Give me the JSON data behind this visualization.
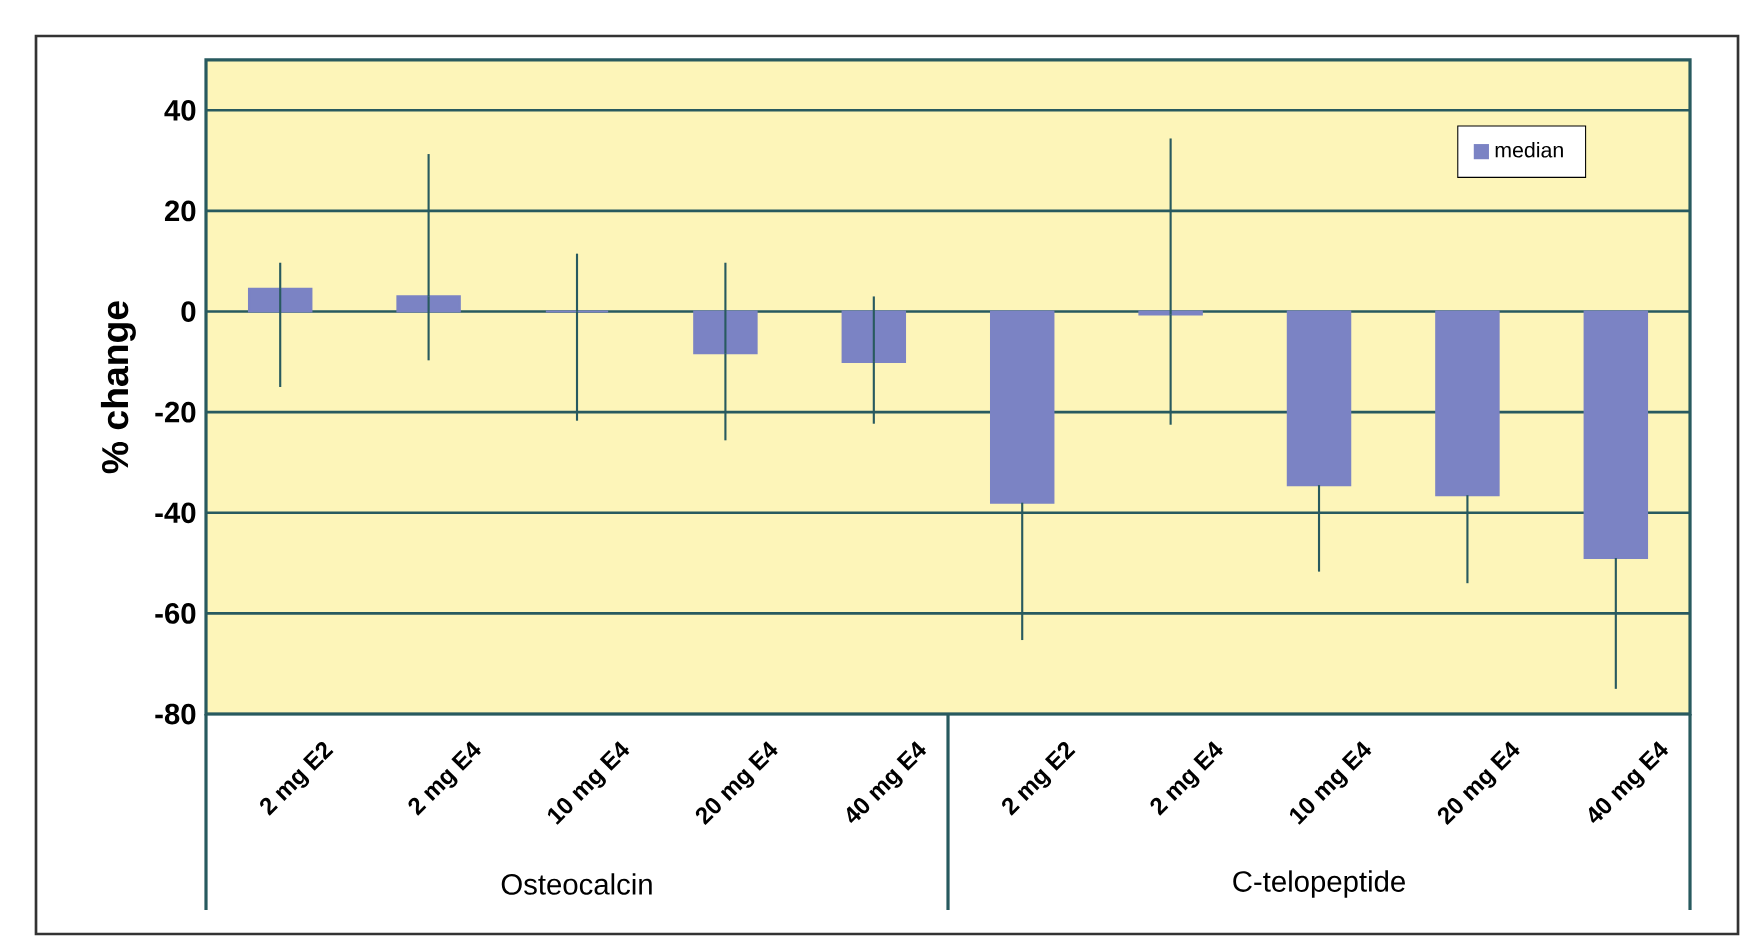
{
  "chart_data": {
    "type": "bar",
    "ylabel": "% change",
    "categories": [
      "2 mg E2",
      "2 mg E4",
      "10 mg E4",
      "20 mg E4",
      "40 mg E4",
      "2 mg E2",
      "2 mg E4",
      "10 mg E4",
      "20 mg E4",
      "40 mg E4"
    ],
    "series": [
      {
        "name": "median",
        "color": "#7b83c4",
        "values": [
          4.5,
          3,
          0,
          -8.3,
          -10,
          -38,
          -0.6,
          -34.5,
          -36.5,
          -49
        ],
        "errors": [
          [
            -15,
            9.7
          ],
          [
            -9.7,
            31.3
          ],
          [
            -21.7,
            11.5
          ],
          [
            -25.6,
            9.7
          ],
          [
            -22.3,
            3
          ],
          [
            -65.3,
            -38
          ],
          [
            -22.5,
            34.4
          ],
          [
            -51.7,
            -34.5
          ],
          [
            -54,
            -36.5
          ],
          [
            -75,
            -49
          ]
        ]
      }
    ],
    "annotations": [
      "Osteocalcin",
      "C-telopeptide"
    ],
    "ylim": [
      -80,
      50
    ],
    "yticks": [
      -80,
      -60,
      -40,
      -20,
      0,
      20,
      40
    ],
    "grid": "y",
    "legend": "top right"
  }
}
